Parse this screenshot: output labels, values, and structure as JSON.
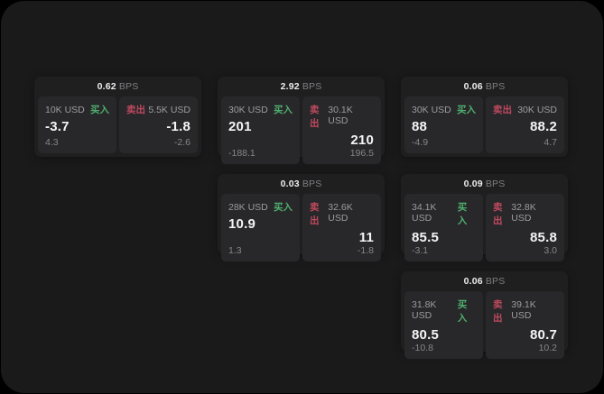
{
  "labels": {
    "bps": "BPS",
    "buy": "买入",
    "sell": "卖出"
  },
  "colors": {
    "buy_green": "#4fae6d",
    "sell_red": "#c0495f"
  },
  "cards": [
    {
      "bps": "0.62",
      "buy": {
        "amount": "10K USD",
        "price": "-3.7",
        "delta": "4.3"
      },
      "sell": {
        "amount": "5.5K USD",
        "price": "-1.8",
        "delta": "-2.6"
      }
    },
    {
      "bps": "2.92",
      "buy": {
        "amount": "30K USD",
        "price": "201",
        "delta": "-188.1"
      },
      "sell": {
        "amount": "30.1K USD",
        "price": "210",
        "delta": "196.5"
      }
    },
    {
      "bps": "0.06",
      "buy": {
        "amount": "30K USD",
        "price": "88",
        "delta": "-4.9"
      },
      "sell": {
        "amount": "30K USD",
        "price": "88.2",
        "delta": "4.7"
      }
    },
    {
      "bps": "0.03",
      "buy": {
        "amount": "28K USD",
        "price": "10.9",
        "delta": "1.3"
      },
      "sell": {
        "amount": "32.6K USD",
        "price": "11",
        "delta": "-1.8"
      }
    },
    {
      "bps": "0.09",
      "buy": {
        "amount": "34.1K USD",
        "price": "85.5",
        "delta": "-3.1"
      },
      "sell": {
        "amount": "32.8K USD",
        "price": "85.8",
        "delta": "3.0"
      }
    },
    {
      "bps": "0.06",
      "buy": {
        "amount": "31.8K USD",
        "price": "80.5",
        "delta": "-10.8"
      },
      "sell": {
        "amount": "39.1K USD",
        "price": "80.7",
        "delta": "10.2"
      }
    }
  ]
}
